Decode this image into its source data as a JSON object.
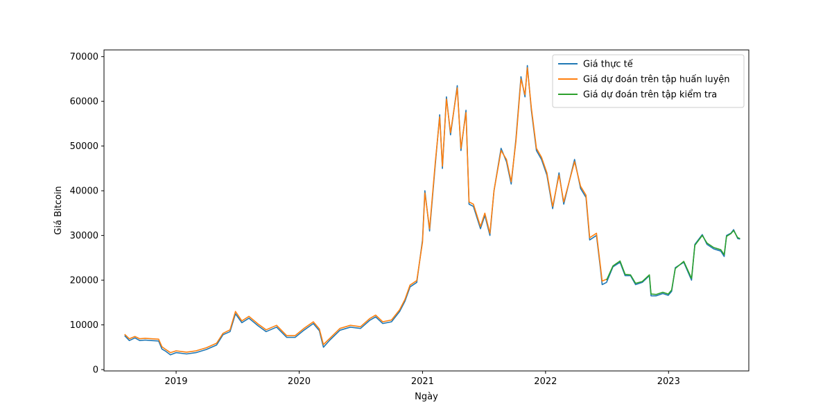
{
  "chart_data": {
    "type": "line",
    "title": "",
    "xlabel": "Ngày",
    "ylabel": "Giá Bitcoin",
    "xlim": [
      "2018-06-01",
      "2023-08-27"
    ],
    "ylim": [
      -300,
      71500
    ],
    "x_ticks": [
      "2019",
      "2020",
      "2021",
      "2022",
      "2023"
    ],
    "y_ticks": [
      "0",
      "10000",
      "20000",
      "30000",
      "40000",
      "50000",
      "60000",
      "70000"
    ],
    "grid": false,
    "legend_position": "upper right",
    "series": [
      {
        "name": "Giá thực tế",
        "color": "#1f77b4",
        "points": [
          [
            "2018-08-01",
            7600
          ],
          [
            "2018-08-15",
            6500
          ],
          [
            "2018-09-01",
            7100
          ],
          [
            "2018-09-15",
            6500
          ],
          [
            "2018-10-01",
            6600
          ],
          [
            "2018-10-20",
            6500
          ],
          [
            "2018-11-10",
            6400
          ],
          [
            "2018-11-20",
            4600
          ],
          [
            "2018-12-01",
            4100
          ],
          [
            "2018-12-15",
            3300
          ],
          [
            "2019-01-01",
            3800
          ],
          [
            "2019-02-01",
            3500
          ],
          [
            "2019-03-01",
            3800
          ],
          [
            "2019-04-01",
            4500
          ],
          [
            "2019-05-01",
            5500
          ],
          [
            "2019-05-20",
            7800
          ],
          [
            "2019-06-10",
            8500
          ],
          [
            "2019-06-26",
            12500
          ],
          [
            "2019-07-15",
            10500
          ],
          [
            "2019-08-05",
            11500
          ],
          [
            "2019-09-01",
            9800
          ],
          [
            "2019-09-25",
            8500
          ],
          [
            "2019-10-26",
            9500
          ],
          [
            "2019-11-25",
            7200
          ],
          [
            "2019-12-20",
            7200
          ],
          [
            "2020-01-15",
            8800
          ],
          [
            "2020-02-12",
            10300
          ],
          [
            "2020-03-01",
            8700
          ],
          [
            "2020-03-13",
            5000
          ],
          [
            "2020-04-01",
            6600
          ],
          [
            "2020-05-01",
            8800
          ],
          [
            "2020-06-01",
            9500
          ],
          [
            "2020-07-01",
            9200
          ],
          [
            "2020-07-28",
            11000
          ],
          [
            "2020-08-15",
            11800
          ],
          [
            "2020-09-05",
            10300
          ],
          [
            "2020-10-01",
            10700
          ],
          [
            "2020-10-25",
            13000
          ],
          [
            "2020-11-10",
            15300
          ],
          [
            "2020-11-25",
            18500
          ],
          [
            "2020-12-15",
            19500
          ],
          [
            "2021-01-01",
            29000
          ],
          [
            "2021-01-08",
            40000
          ],
          [
            "2021-01-22",
            31000
          ],
          [
            "2021-02-08",
            46000
          ],
          [
            "2021-02-21",
            57000
          ],
          [
            "2021-03-01",
            45000
          ],
          [
            "2021-03-13",
            61000
          ],
          [
            "2021-03-25",
            52500
          ],
          [
            "2021-04-14",
            63500
          ],
          [
            "2021-04-25",
            49000
          ],
          [
            "2021-05-10",
            58000
          ],
          [
            "2021-05-19",
            37000
          ],
          [
            "2021-06-01",
            36500
          ],
          [
            "2021-06-22",
            31500
          ],
          [
            "2021-07-05",
            34500
          ],
          [
            "2021-07-20",
            30000
          ],
          [
            "2021-08-01",
            40000
          ],
          [
            "2021-08-22",
            49500
          ],
          [
            "2021-09-07",
            46500
          ],
          [
            "2021-09-21",
            41500
          ],
          [
            "2021-10-05",
            51500
          ],
          [
            "2021-10-20",
            65500
          ],
          [
            "2021-11-01",
            61000
          ],
          [
            "2021-11-08",
            68000
          ],
          [
            "2021-11-20",
            58000
          ],
          [
            "2021-12-05",
            49000
          ],
          [
            "2021-12-20",
            47000
          ],
          [
            "2022-01-05",
            43500
          ],
          [
            "2022-01-22",
            36000
          ],
          [
            "2022-02-10",
            44000
          ],
          [
            "2022-02-24",
            37000
          ],
          [
            "2022-03-28",
            47000
          ],
          [
            "2022-04-15",
            40500
          ],
          [
            "2022-05-01",
            38500
          ],
          [
            "2022-05-12",
            29000
          ],
          [
            "2022-06-01",
            30000
          ],
          [
            "2022-06-13",
            22500
          ],
          [
            "2022-06-18",
            19000
          ],
          [
            "2022-07-01",
            19500
          ],
          [
            "2022-07-20",
            23000
          ],
          [
            "2022-08-10",
            24000
          ],
          [
            "2022-08-25",
            21000
          ],
          [
            "2022-09-10",
            21000
          ],
          [
            "2022-09-25",
            19000
          ],
          [
            "2022-10-15",
            19500
          ],
          [
            "2022-11-05",
            21000
          ],
          [
            "2022-11-10",
            16500
          ],
          [
            "2022-11-25",
            16500
          ],
          [
            "2022-12-15",
            17000
          ],
          [
            "2022-12-31",
            16600
          ],
          [
            "2023-01-10",
            17500
          ],
          [
            "2023-01-21",
            22800
          ],
          [
            "2023-02-15",
            24000
          ],
          [
            "2023-03-10",
            20000
          ],
          [
            "2023-03-20",
            28000
          ],
          [
            "2023-04-11",
            30200
          ],
          [
            "2023-04-25",
            28000
          ],
          [
            "2023-05-15",
            27000
          ],
          [
            "2023-06-05",
            26500
          ],
          [
            "2023-06-15",
            25300
          ],
          [
            "2023-06-22",
            30000
          ],
          [
            "2023-07-05",
            30500
          ],
          [
            "2023-07-13",
            31300
          ],
          [
            "2023-07-25",
            29300
          ],
          [
            "2023-08-01",
            29200
          ]
        ]
      },
      {
        "name": "Giá dự đoán trên tập huấn luyện",
        "color": "#ff7f0e",
        "points": [
          [
            "2018-08-01",
            7900
          ],
          [
            "2018-08-15",
            6900
          ],
          [
            "2018-09-01",
            7400
          ],
          [
            "2018-09-15",
            6900
          ],
          [
            "2018-10-01",
            7000
          ],
          [
            "2018-10-20",
            6900
          ],
          [
            "2018-11-10",
            6800
          ],
          [
            "2018-11-20",
            5100
          ],
          [
            "2018-12-01",
            4500
          ],
          [
            "2018-12-15",
            3800
          ],
          [
            "2019-01-01",
            4200
          ],
          [
            "2019-02-01",
            3900
          ],
          [
            "2019-03-01",
            4200
          ],
          [
            "2019-04-01",
            4900
          ],
          [
            "2019-05-01",
            5900
          ],
          [
            "2019-05-20",
            8100
          ],
          [
            "2019-06-10",
            8900
          ],
          [
            "2019-06-26",
            13000
          ],
          [
            "2019-07-15",
            10900
          ],
          [
            "2019-08-05",
            11900
          ],
          [
            "2019-09-01",
            10200
          ],
          [
            "2019-09-25",
            8900
          ],
          [
            "2019-10-26",
            9900
          ],
          [
            "2019-11-25",
            7600
          ],
          [
            "2019-12-20",
            7600
          ],
          [
            "2020-01-15",
            9200
          ],
          [
            "2020-02-12",
            10700
          ],
          [
            "2020-03-01",
            9100
          ],
          [
            "2020-03-13",
            5600
          ],
          [
            "2020-04-01",
            7000
          ],
          [
            "2020-05-01",
            9200
          ],
          [
            "2020-06-01",
            9900
          ],
          [
            "2020-07-01",
            9600
          ],
          [
            "2020-07-28",
            11400
          ],
          [
            "2020-08-15",
            12200
          ],
          [
            "2020-09-05",
            10700
          ],
          [
            "2020-10-01",
            11100
          ],
          [
            "2020-10-25",
            13400
          ],
          [
            "2020-11-10",
            15700
          ],
          [
            "2020-11-25",
            18900
          ],
          [
            "2020-12-15",
            19900
          ],
          [
            "2021-01-01",
            28500
          ],
          [
            "2021-01-08",
            39500
          ],
          [
            "2021-01-22",
            31500
          ],
          [
            "2021-02-08",
            46500
          ],
          [
            "2021-02-21",
            56500
          ],
          [
            "2021-03-01",
            45500
          ],
          [
            "2021-03-13",
            60500
          ],
          [
            "2021-03-25",
            53000
          ],
          [
            "2021-04-14",
            63000
          ],
          [
            "2021-04-25",
            49500
          ],
          [
            "2021-05-10",
            57500
          ],
          [
            "2021-05-19",
            37500
          ],
          [
            "2021-06-01",
            37000
          ],
          [
            "2021-06-22",
            32000
          ],
          [
            "2021-07-05",
            35000
          ],
          [
            "2021-07-20",
            30500
          ],
          [
            "2021-08-01",
            40000
          ],
          [
            "2021-08-22",
            49000
          ],
          [
            "2021-09-07",
            47000
          ],
          [
            "2021-09-21",
            42000
          ],
          [
            "2021-10-05",
            51000
          ],
          [
            "2021-10-20",
            65000
          ],
          [
            "2021-11-01",
            61500
          ],
          [
            "2021-11-08",
            67500
          ],
          [
            "2021-11-20",
            58500
          ],
          [
            "2021-12-05",
            49500
          ],
          [
            "2021-12-20",
            47500
          ],
          [
            "2022-01-05",
            44000
          ],
          [
            "2022-01-22",
            36500
          ],
          [
            "2022-02-10",
            43500
          ],
          [
            "2022-02-24",
            37500
          ],
          [
            "2022-03-28",
            46500
          ],
          [
            "2022-04-15",
            41000
          ],
          [
            "2022-05-01",
            39000
          ],
          [
            "2022-05-12",
            29500
          ],
          [
            "2022-06-01",
            30500
          ],
          [
            "2022-06-13",
            23000
          ],
          [
            "2022-06-18",
            19800
          ],
          [
            "2022-07-01",
            20200
          ]
        ]
      },
      {
        "name": "Giá dự đoán trên tập kiểm tra",
        "color": "#2ca02c",
        "points": [
          [
            "2022-07-01",
            20000
          ],
          [
            "2022-07-20",
            23200
          ],
          [
            "2022-08-10",
            24300
          ],
          [
            "2022-08-25",
            21300
          ],
          [
            "2022-09-10",
            21200
          ],
          [
            "2022-09-25",
            19300
          ],
          [
            "2022-10-15",
            19700
          ],
          [
            "2022-11-05",
            21200
          ],
          [
            "2022-11-10",
            16900
          ],
          [
            "2022-11-25",
            16800
          ],
          [
            "2022-12-15",
            17300
          ],
          [
            "2022-12-31",
            16900
          ],
          [
            "2023-01-10",
            17800
          ],
          [
            "2023-01-21",
            22600
          ],
          [
            "2023-02-15",
            24200
          ],
          [
            "2023-03-10",
            20400
          ],
          [
            "2023-03-20",
            27800
          ],
          [
            "2023-04-11",
            30000
          ],
          [
            "2023-04-25",
            28300
          ],
          [
            "2023-05-15",
            27300
          ],
          [
            "2023-06-05",
            26800
          ],
          [
            "2023-06-15",
            25700
          ],
          [
            "2023-06-22",
            29800
          ],
          [
            "2023-07-05",
            30400
          ],
          [
            "2023-07-13",
            31100
          ],
          [
            "2023-07-25",
            29500
          ],
          [
            "2023-08-01",
            29300
          ]
        ]
      }
    ]
  }
}
